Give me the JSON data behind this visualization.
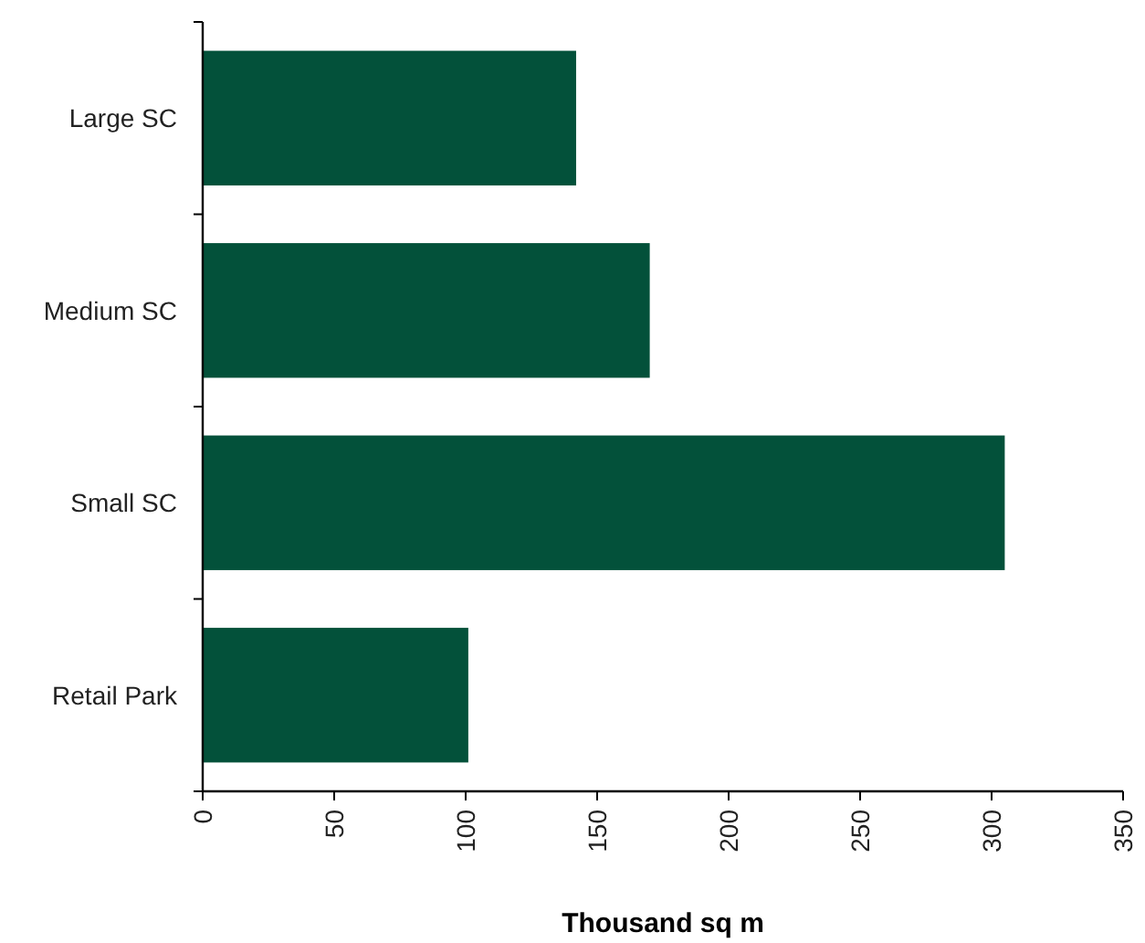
{
  "chart_data": {
    "type": "bar",
    "orientation": "horizontal",
    "xlabel": "Thousand sq m",
    "categories": [
      "Large SC",
      "Medium SC",
      "Small SC",
      "Retail Park"
    ],
    "values": [
      142,
      170,
      305,
      101
    ],
    "color": "#03513a",
    "xlim": [
      0,
      350
    ],
    "xticks": [
      0,
      50,
      100,
      150,
      200,
      250,
      300,
      350
    ],
    "grid": false
  }
}
